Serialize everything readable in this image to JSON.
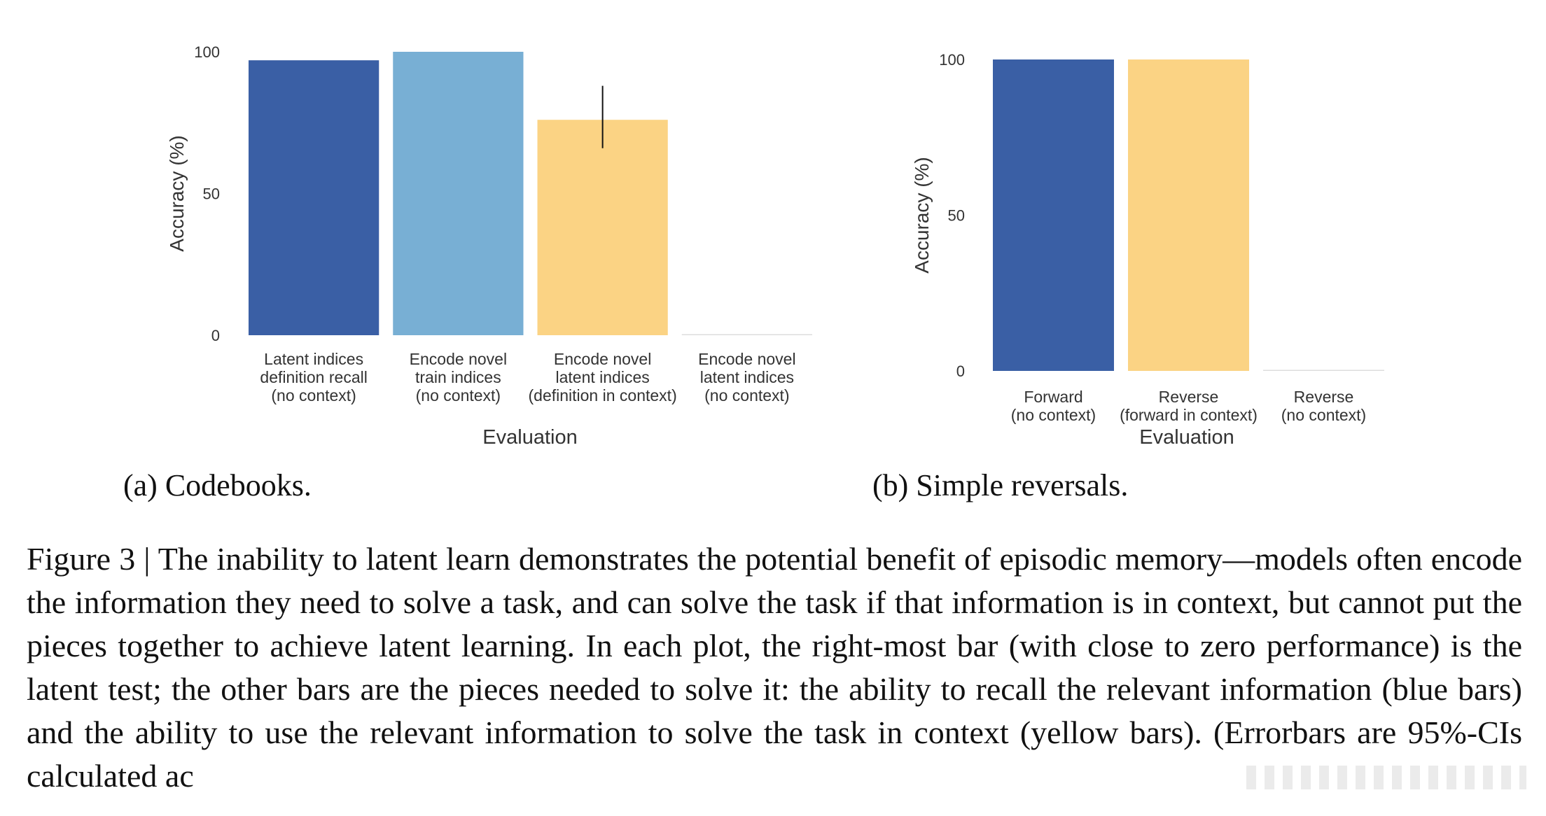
{
  "chart_data": [
    {
      "type": "bar",
      "ylabel": "Accuracy (%)",
      "xlabel": "Evaluation",
      "ylim": [
        0,
        100
      ],
      "yticks": [
        0,
        50,
        100
      ],
      "categories": [
        [
          "Latent indices",
          "definition recall",
          "(no context)"
        ],
        [
          "Encode novel",
          "train indices",
          "(no context)"
        ],
        [
          "Encode novel",
          "latent indices",
          "(definition in context)"
        ],
        [
          "Encode novel",
          "latent indices",
          "(no context)"
        ]
      ],
      "values": [
        97,
        100,
        76,
        0
      ],
      "error_bars": [
        null,
        null,
        [
          66,
          88
        ],
        null
      ],
      "colors": [
        "#3a5fa5",
        "#78afd4",
        "#fbd384",
        "#dddddd"
      ],
      "grid": false
    },
    {
      "type": "bar",
      "ylabel": "Accuracy (%)",
      "xlabel": "Evaluation",
      "ylim": [
        0,
        100
      ],
      "yticks": [
        0,
        50,
        100
      ],
      "categories": [
        [
          "Forward",
          "(no context)"
        ],
        [
          "Reverse",
          "(forward in context)"
        ],
        [
          "Reverse",
          "(no context)"
        ]
      ],
      "values": [
        100,
        100,
        0
      ],
      "colors": [
        "#3a5fa5",
        "#fbd384",
        "#dddddd"
      ],
      "grid": false
    }
  ],
  "subcaptions": {
    "a": "(a) Codebooks.",
    "b": "(b) Simple reversals."
  },
  "caption": "Figure 3 | The inability to latent learn demonstrates the potential benefit of episodic memory—models often encode the information they need to solve a task, and can solve the task if that information is in context, but cannot put the pieces together to achieve latent learning. In each plot, the right-most bar (with close to zero performance) is the latent test; the other bars are the pieces needed to solve it: the ability to recall the relevant information (blue bars) and the ability to use the relevant information to solve the task in context (yellow bars). (Errorbars are 95%-CIs calculated ac"
}
